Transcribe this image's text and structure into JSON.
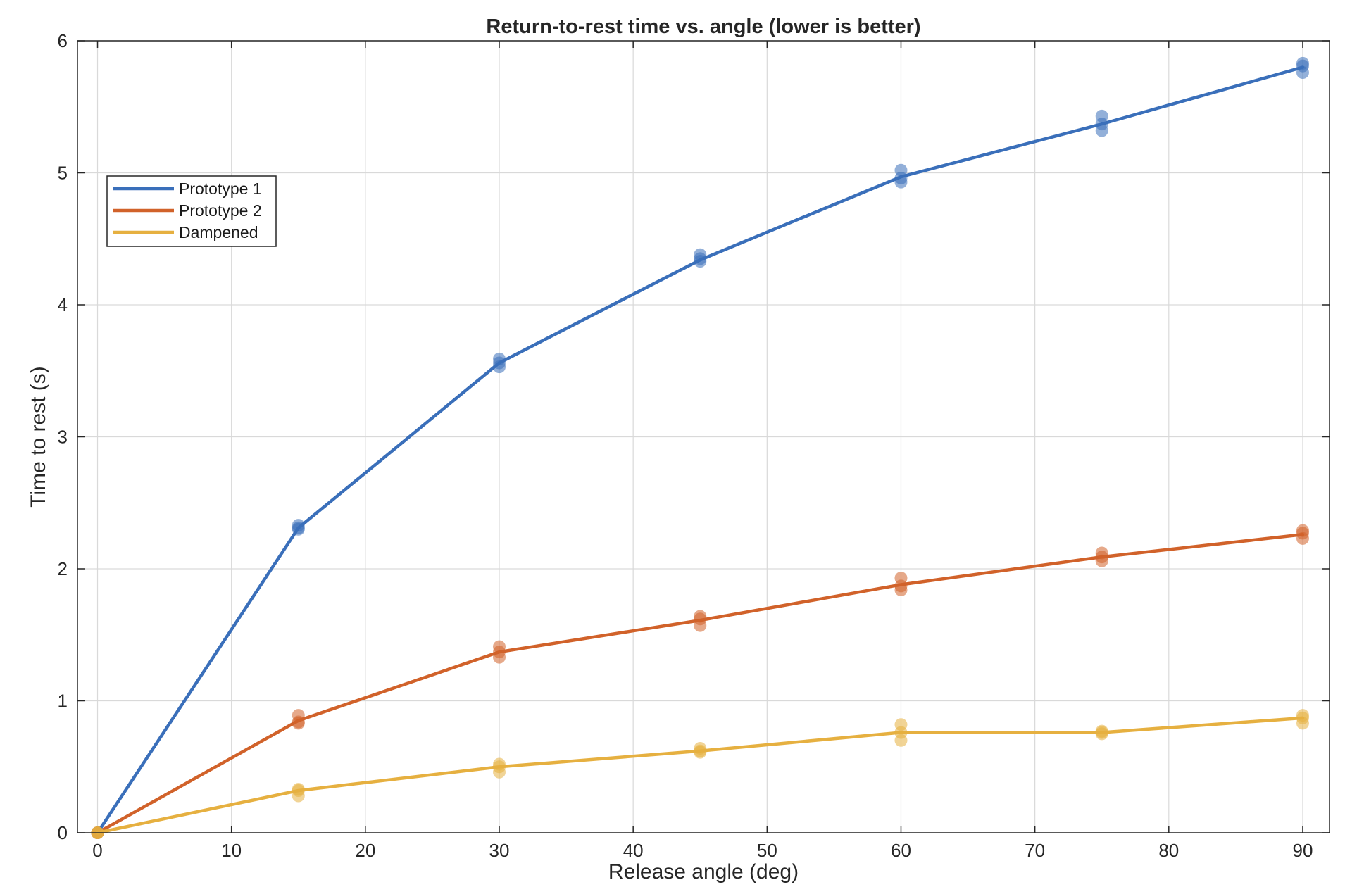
{
  "chart_data": {
    "type": "line",
    "title": "Return-to-rest time vs. angle (lower is better)",
    "xlabel": "Release angle (deg)",
    "ylabel": "Time to rest (s)",
    "xlim": [
      -1.5,
      92
    ],
    "ylim": [
      0,
      6
    ],
    "xticks": [
      0,
      10,
      20,
      30,
      40,
      50,
      60,
      70,
      80,
      90
    ],
    "yticks": [
      0,
      1,
      2,
      3,
      4,
      5,
      6
    ],
    "grid": true,
    "legend_position": "upper-left",
    "x": [
      0,
      15,
      30,
      45,
      60,
      75,
      90
    ],
    "series": [
      {
        "name": "Prototype 1",
        "color": "#3a6fba",
        "mean": [
          0,
          2.31,
          3.56,
          4.34,
          4.97,
          5.37,
          5.8
        ],
        "trials": [
          [
            0,
            0,
            0
          ],
          [
            2.33,
            2.3,
            2.31
          ],
          [
            3.59,
            3.53,
            3.56
          ],
          [
            4.38,
            4.33,
            4.35
          ],
          [
            5.02,
            4.93,
            4.96
          ],
          [
            5.43,
            5.32,
            5.37
          ],
          [
            5.83,
            5.76,
            5.81
          ]
        ]
      },
      {
        "name": "Prototype 2",
        "color": "#d1622a",
        "mean": [
          0,
          0.85,
          1.37,
          1.61,
          1.88,
          2.09,
          2.26
        ],
        "trials": [
          [
            0,
            0,
            0
          ],
          [
            0.89,
            0.83,
            0.84
          ],
          [
            1.41,
            1.33,
            1.37
          ],
          [
            1.64,
            1.57,
            1.62
          ],
          [
            1.93,
            1.84,
            1.87
          ],
          [
            2.12,
            2.06,
            2.09
          ],
          [
            2.29,
            2.23,
            2.27
          ]
        ]
      },
      {
        "name": "Dampened",
        "color": "#e6b040",
        "mean": [
          0,
          0.32,
          0.5,
          0.62,
          0.76,
          0.76,
          0.87
        ],
        "trials": [
          [
            0,
            0,
            0
          ],
          [
            0.33,
            0.28,
            0.32
          ],
          [
            0.52,
            0.46,
            0.5
          ],
          [
            0.64,
            0.61,
            0.62
          ],
          [
            0.82,
            0.7,
            0.76
          ],
          [
            0.77,
            0.75,
            0.76
          ],
          [
            0.89,
            0.83,
            0.87
          ]
        ]
      }
    ]
  }
}
